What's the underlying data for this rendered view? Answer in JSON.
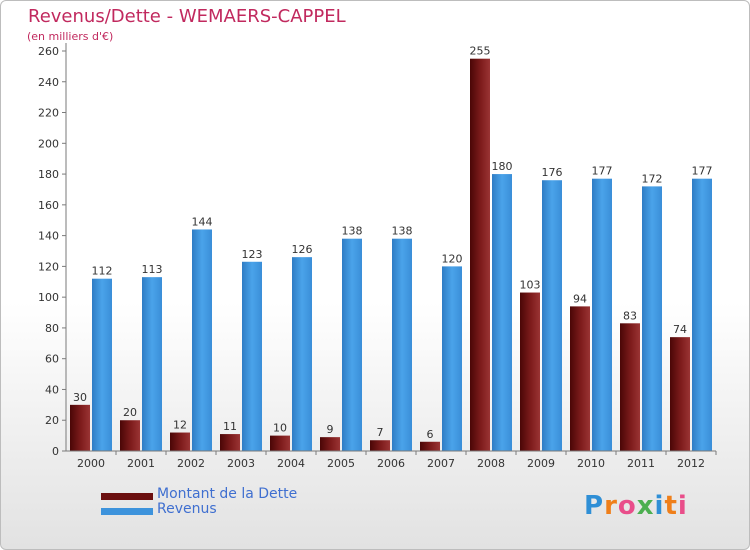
{
  "chart_data": {
    "type": "bar",
    "title": "Revenus/Dette - WEMAERS-CAPPEL",
    "subtitle": "(en milliers d'€)",
    "categories": [
      "2000",
      "2001",
      "2002",
      "2003",
      "2004",
      "2005",
      "2006",
      "2007",
      "2008",
      "2009",
      "2010",
      "2011",
      "2012"
    ],
    "series": [
      {
        "name": "Montant de la Dette",
        "color": "#6b0f0f",
        "values": [
          30,
          20,
          12,
          11,
          10,
          9,
          7,
          6,
          255,
          103,
          94,
          83,
          74
        ]
      },
      {
        "name": "Revenus",
        "color": "#3d93dc",
        "values": [
          112,
          113,
          144,
          123,
          126,
          138,
          138,
          120,
          180,
          176,
          177,
          172,
          177
        ]
      }
    ],
    "ylim": [
      0,
      260
    ],
    "yticks": [
      0,
      20,
      40,
      60,
      80,
      100,
      120,
      140,
      160,
      180,
      200,
      220,
      240,
      260
    ],
    "grid": false,
    "legend": "bottom-left"
  },
  "brand": {
    "name": "Proxiti",
    "letters": [
      {
        "ch": "P",
        "color": "#2f8fd6"
      },
      {
        "ch": "r",
        "color": "#ef7f1a"
      },
      {
        "ch": "o",
        "color": "#e94e8a"
      },
      {
        "ch": "x",
        "color": "#4caf50"
      },
      {
        "ch": "i",
        "color": "#2f8fd6"
      },
      {
        "ch": "t",
        "color": "#ef7f1a"
      },
      {
        "ch": "i",
        "color": "#e94e8a"
      }
    ]
  }
}
